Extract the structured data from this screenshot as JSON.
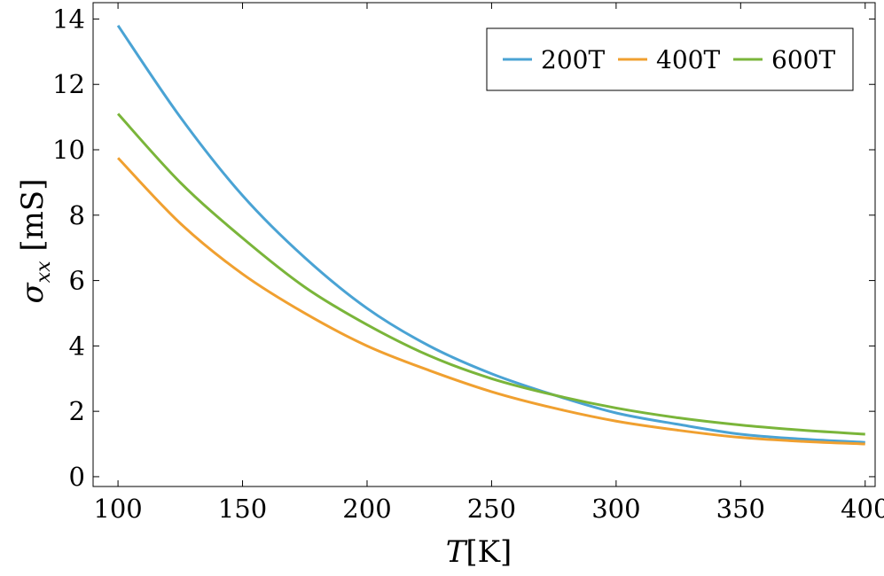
{
  "chart_data": {
    "type": "line",
    "xlabel": {
      "main": "T",
      "unit": "[K]"
    },
    "ylabel": {
      "main": "σ",
      "sub": "xx",
      "unit": " [mS]"
    },
    "xlim": [
      90,
      404
    ],
    "ylim": [
      -0.3,
      14.5
    ],
    "xticks": [
      100,
      150,
      200,
      250,
      300,
      350,
      400
    ],
    "yticks": [
      0,
      2,
      4,
      6,
      8,
      10,
      12,
      14
    ],
    "legend_position": "top-right",
    "series": [
      {
        "name": "200T",
        "color": "#4aa3d4",
        "x": [
          100,
          125,
          150,
          175,
          200,
          225,
          250,
          275,
          300,
          325,
          350,
          375,
          400
        ],
        "y": [
          13.8,
          11.0,
          8.6,
          6.7,
          5.15,
          4.0,
          3.15,
          2.5,
          1.95,
          1.6,
          1.3,
          1.15,
          1.05
        ]
      },
      {
        "name": "400T",
        "color": "#f0a030",
        "x": [
          100,
          125,
          150,
          175,
          200,
          225,
          250,
          275,
          300,
          325,
          350,
          375,
          400
        ],
        "y": [
          9.75,
          7.75,
          6.2,
          5.0,
          4.0,
          3.25,
          2.6,
          2.1,
          1.7,
          1.42,
          1.2,
          1.08,
          1.0
        ]
      },
      {
        "name": "600T",
        "color": "#7ab53a",
        "x": [
          100,
          125,
          150,
          175,
          200,
          225,
          250,
          275,
          300,
          325,
          350,
          375,
          400
        ],
        "y": [
          11.1,
          9.0,
          7.3,
          5.8,
          4.65,
          3.7,
          3.0,
          2.5,
          2.1,
          1.8,
          1.58,
          1.42,
          1.3
        ]
      }
    ]
  }
}
